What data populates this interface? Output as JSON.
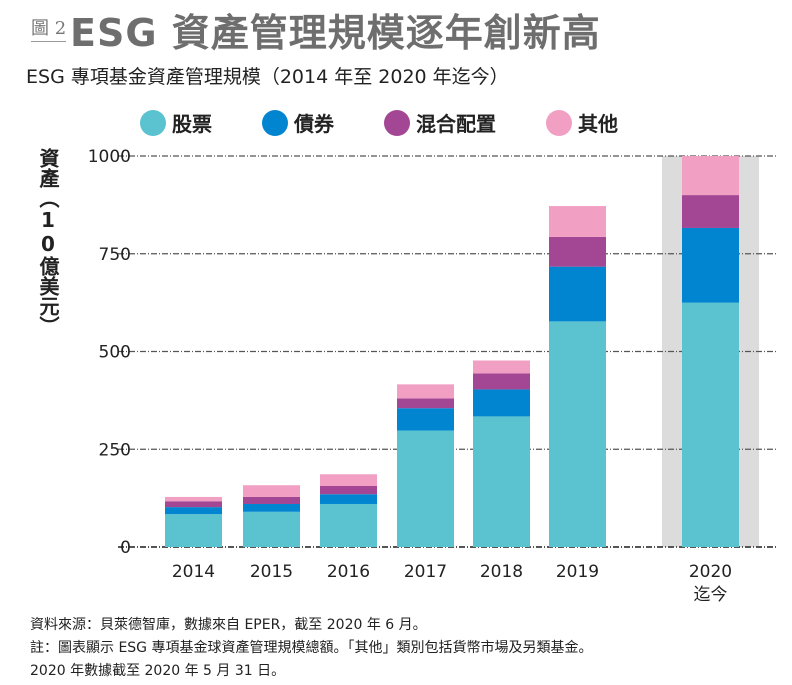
{
  "figure_label": "圖 2",
  "title": "ESG 資產管理規模逐年創新高",
  "colors": {
    "stocks": "#5bc2d0",
    "bonds": "#0285d0",
    "mixed": "#a34794",
    "other": "#f19fc3",
    "highlight_band": "#dcdcdc",
    "grid": "#555555"
  },
  "chart_data": {
    "type": "bar",
    "stacked": true,
    "title": "ESG 專項基金資產管理規模（2014 年至 2020 年迄今）",
    "ylabel": "資產（10億美元）",
    "xlabel": "",
    "ylim": [
      0,
      1000
    ],
    "yticks": [
      "0",
      "250",
      "500",
      "750",
      "1000"
    ],
    "grid": true,
    "legend_position": "top",
    "categories": [
      "2014",
      "2015",
      "2016",
      "2017",
      "2018",
      "2019",
      "2020"
    ],
    "category_sublabels": [
      "",
      "",
      "",
      "",
      "",
      "",
      "迄今"
    ],
    "highlighted_category": "2020",
    "series": [
      {
        "name": "股票",
        "color_key": "stocks",
        "values": [
          84,
          90,
          110,
          298,
          334,
          577,
          625
        ]
      },
      {
        "name": "債券",
        "color_key": "bonds",
        "values": [
          18,
          20,
          25,
          57,
          69,
          140,
          191
        ]
      },
      {
        "name": "混合配置",
        "color_key": "mixed",
        "values": [
          15,
          18,
          21,
          25,
          41,
          76,
          84
        ]
      },
      {
        "name": "其他",
        "color_key": "other",
        "values": [
          11,
          30,
          30,
          36,
          33,
          79,
          100
        ]
      }
    ]
  },
  "notes": [
    "資料來源：貝萊德智庫，數據來自 EPER，截至 2020 年 6 月。",
    "註：圖表顯示 ESG 專項基金球資產管理規模總額。「其他」類別包括貨幣市場及另類基金。",
    "2020 年數據截至 2020 年 5 月 31 日。"
  ]
}
